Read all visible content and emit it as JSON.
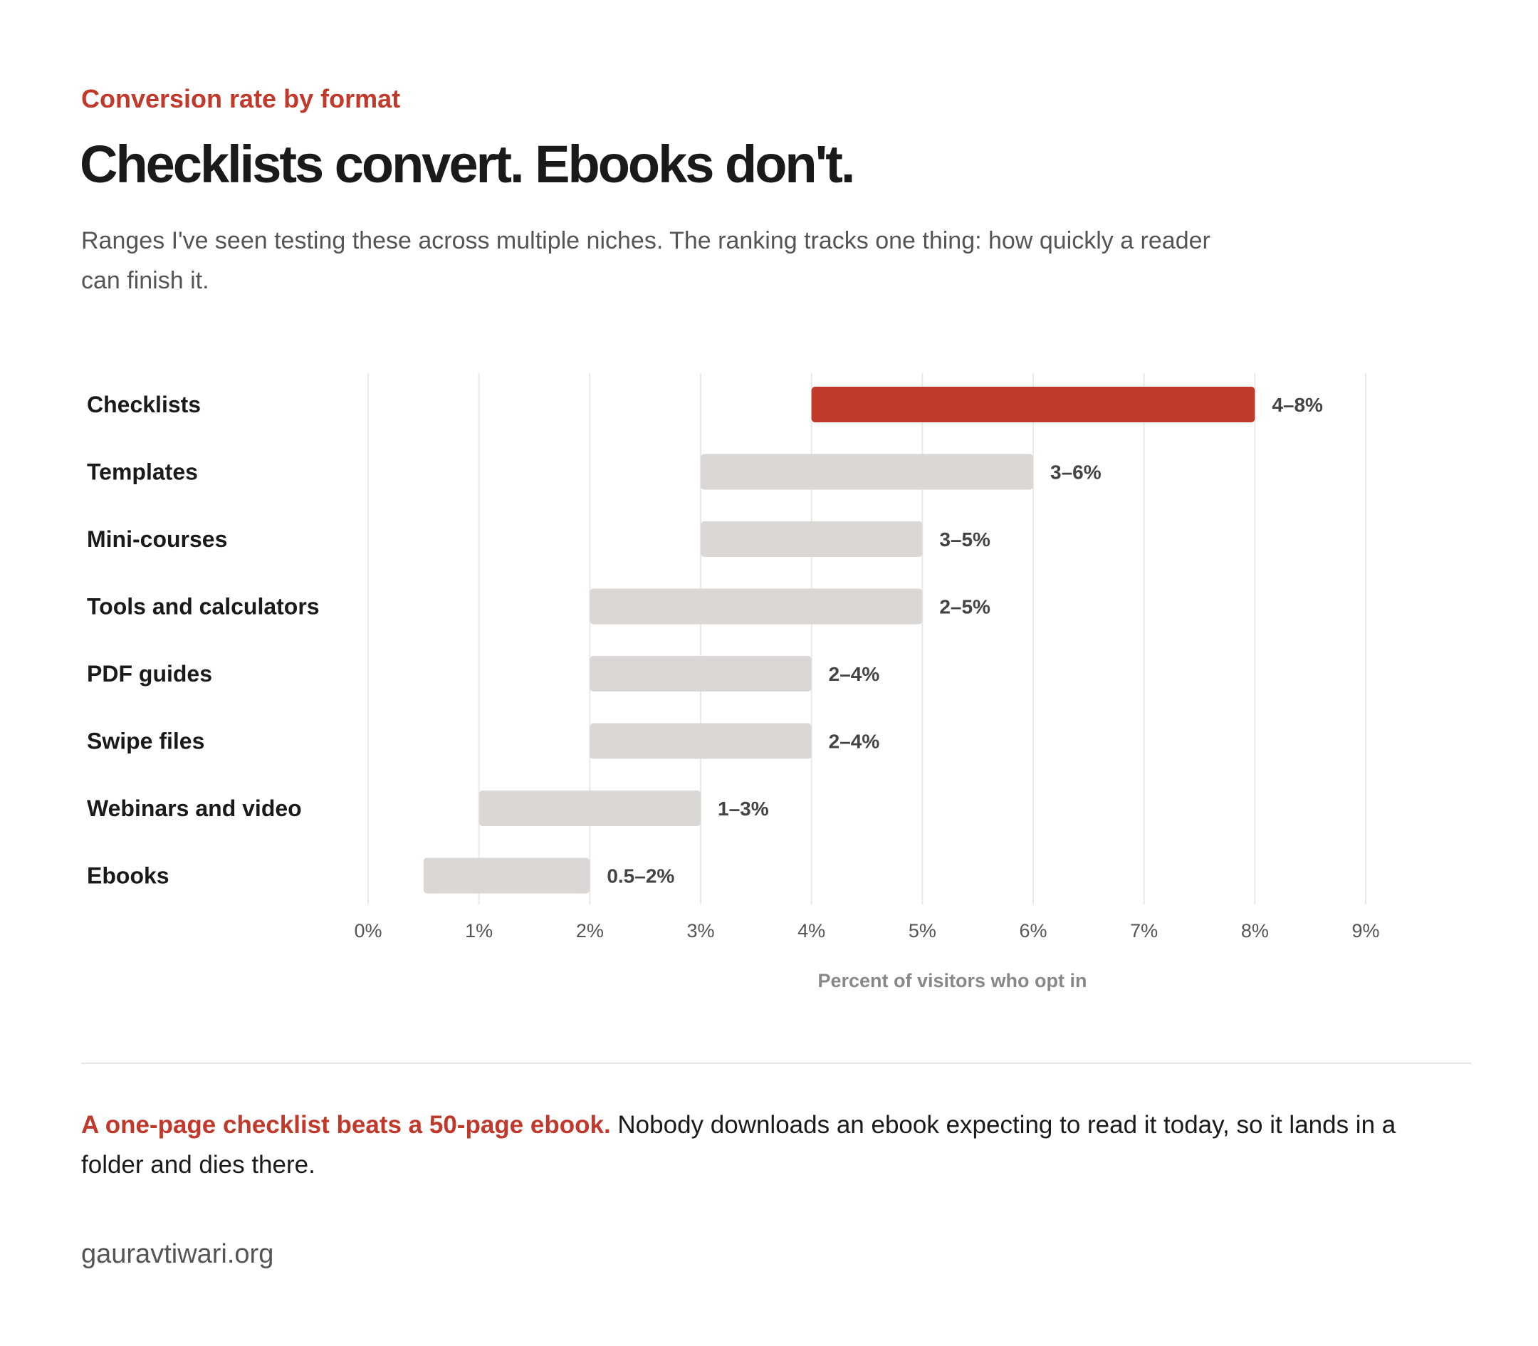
{
  "header": {
    "eyebrow": "Conversion rate by format",
    "title": "Checklists convert. Ebooks don't.",
    "subtitle": "Ranges I've seen testing these across multiple niches. The ranking tracks one thing: how quickly a reader can finish it."
  },
  "colors": {
    "highlight": "#c0392b",
    "bar": "#dad7d4",
    "grid": "#ebe9e7",
    "category_text": "#1a1a1a",
    "tick_text": "#555555",
    "axis_label_text": "#888888"
  },
  "chart_data": {
    "type": "bar",
    "orientation": "horizontal",
    "bar_style": "floating range",
    "categories": [
      "Checklists",
      "Templates",
      "Mini-courses",
      "Tools and calculators",
      "PDF guides",
      "Swipe files",
      "Webinars and video",
      "Ebooks"
    ],
    "ranges": [
      [
        4,
        8
      ],
      [
        3,
        6
      ],
      [
        3,
        5
      ],
      [
        2,
        5
      ],
      [
        2,
        4
      ],
      [
        2,
        4
      ],
      [
        1,
        3
      ],
      [
        0.5,
        2
      ]
    ],
    "data_labels": [
      "4–8%",
      "3–6%",
      "3–5%",
      "2–5%",
      "2–4%",
      "2–4%",
      "1–3%",
      "0.5–2%"
    ],
    "highlighted_category": "Checklists",
    "xlim": [
      0,
      9
    ],
    "x_ticks": [
      0,
      1,
      2,
      3,
      4,
      5,
      6,
      7,
      8,
      9
    ],
    "x_tick_labels": [
      "0%",
      "1%",
      "2%",
      "3%",
      "4%",
      "5%",
      "6%",
      "7%",
      "8%",
      "9%"
    ],
    "xlabel": "Percent of visitors who opt in",
    "grid": "vertical"
  },
  "footer": {
    "note_lead": "A one-page checklist beats a 50-page ebook.",
    "note_body": " Nobody downloads an ebook expecting to read it today, so it lands in a folder and dies there.",
    "source": "gauravtiwari.org"
  }
}
